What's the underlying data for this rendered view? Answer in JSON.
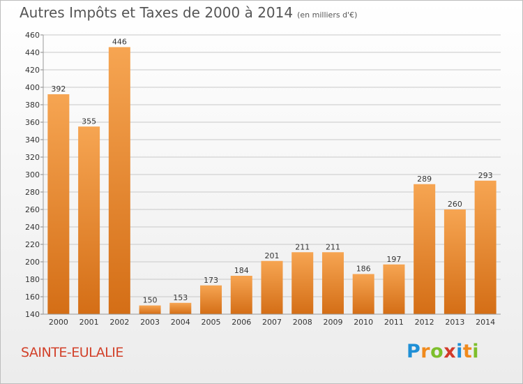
{
  "title": "Autres Impôts et Taxes de 2000 à 2014",
  "subtitle": "(en milliers d'€)",
  "place": "SAINTE-EULALIE",
  "logo": {
    "letters": [
      "P",
      "r",
      "o",
      "x",
      "i",
      "t",
      "i"
    ],
    "colors": [
      "#1f8fd6",
      "#f08a1c",
      "#7dbf2c",
      "#d23a2a",
      "#1f8fd6",
      "#f08a1c",
      "#7dbf2c"
    ]
  },
  "colors": {
    "bar_top": "#f6a552",
    "bar_bottom": "#d46e16",
    "grid": "#c8c8c8",
    "text": "#333333"
  },
  "chart_data": {
    "type": "bar",
    "categories": [
      "2000",
      "2001",
      "2002",
      "2003",
      "2004",
      "2005",
      "2006",
      "2007",
      "2008",
      "2009",
      "2010",
      "2011",
      "2012",
      "2013",
      "2014"
    ],
    "values": [
      392,
      355,
      446,
      150,
      153,
      173,
      184,
      201,
      211,
      211,
      186,
      197,
      289,
      260,
      293
    ],
    "ylim": [
      140,
      460
    ],
    "yticks": [
      140,
      160,
      180,
      200,
      220,
      240,
      260,
      280,
      300,
      320,
      340,
      360,
      380,
      400,
      420,
      440,
      460
    ],
    "grid": true,
    "data_labels": true
  }
}
